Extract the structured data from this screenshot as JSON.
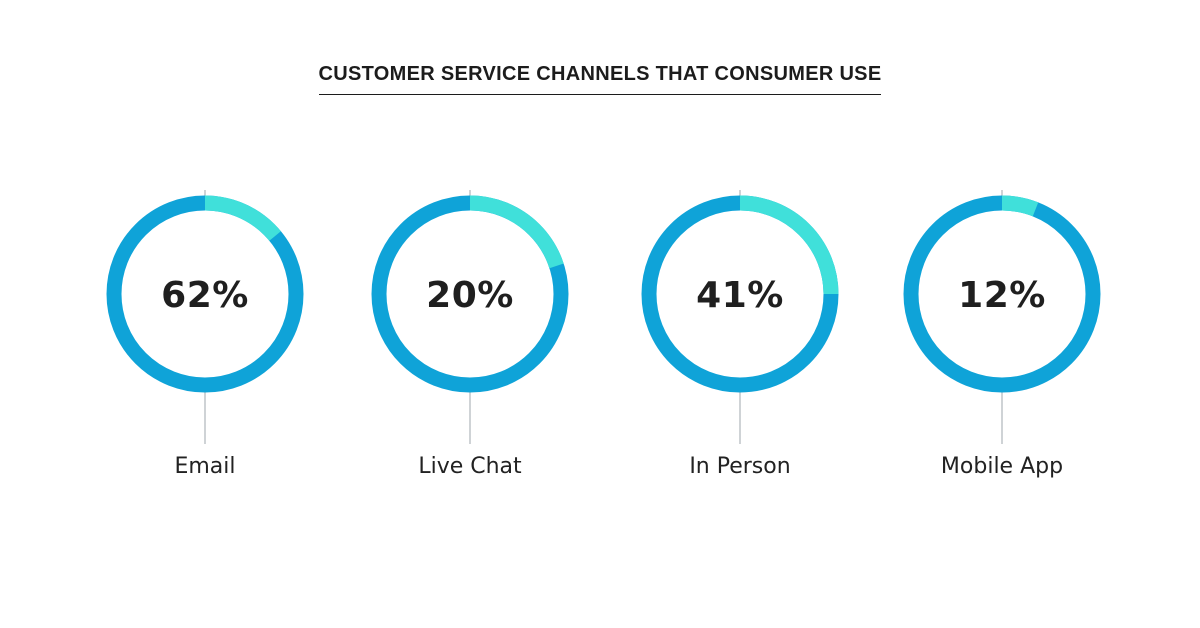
{
  "title": "CUSTOMER SERVICE CHANNELS THAT CONSUMER USE",
  "colors": {
    "ring": "#0fa3d8",
    "highlight": "#40e0da",
    "connector": "#cfd3d6",
    "text": "#1f1f1f"
  },
  "chart_data": {
    "type": "donut",
    "title": "CUSTOMER SERVICE CHANNELS THAT CONSUMER USE",
    "items": [
      {
        "label": "Email",
        "value_label": "62%",
        "value": 62,
        "highlight_fraction": 0.14
      },
      {
        "label": "Live Chat",
        "value_label": "20%",
        "value": 20,
        "highlight_fraction": 0.2
      },
      {
        "label": "In Person",
        "value_label": "41%",
        "value": 41,
        "highlight_fraction": 0.25
      },
      {
        "label": "Mobile App",
        "value_label": "12%",
        "value": 12,
        "highlight_fraction": 0.06
      }
    ]
  }
}
